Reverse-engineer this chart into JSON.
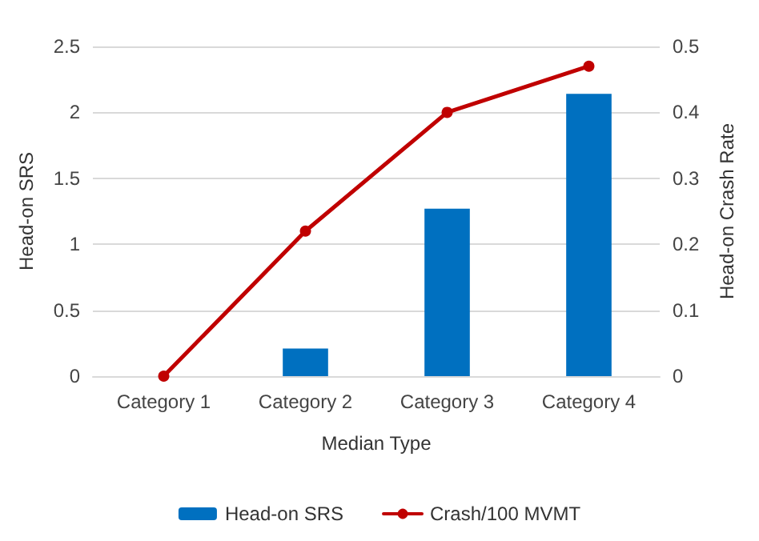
{
  "chart_data": {
    "type": "bar",
    "xlabel": "Median Type",
    "ylabel": "Head-on SRS",
    "y2label": "Head-on Crash Rate",
    "categories": [
      "Category 1",
      "Category 2",
      "Category 3",
      "Category 4"
    ],
    "series": [
      {
        "name": "Head-on SRS",
        "color": "#0070c0",
        "values": [
          0,
          0.21,
          1.27,
          2.14
        ]
      },
      {
        "name": "Crash/100 MVMT",
        "type": "line",
        "axis": "y2",
        "color": "#c00000",
        "values": [
          0,
          0.22,
          0.4,
          0.47
        ]
      }
    ],
    "ylim": [
      0,
      2.5
    ],
    "yticks": [
      0,
      0.5,
      1,
      1.5,
      2,
      2.5
    ],
    "y2lim": [
      0,
      0.5
    ],
    "y2ticks": [
      0,
      0.1,
      0.2,
      0.3,
      0.4,
      0.5
    ],
    "grid": "y",
    "legend": "bottom",
    "marker": "circle",
    "line_style": "solid"
  }
}
